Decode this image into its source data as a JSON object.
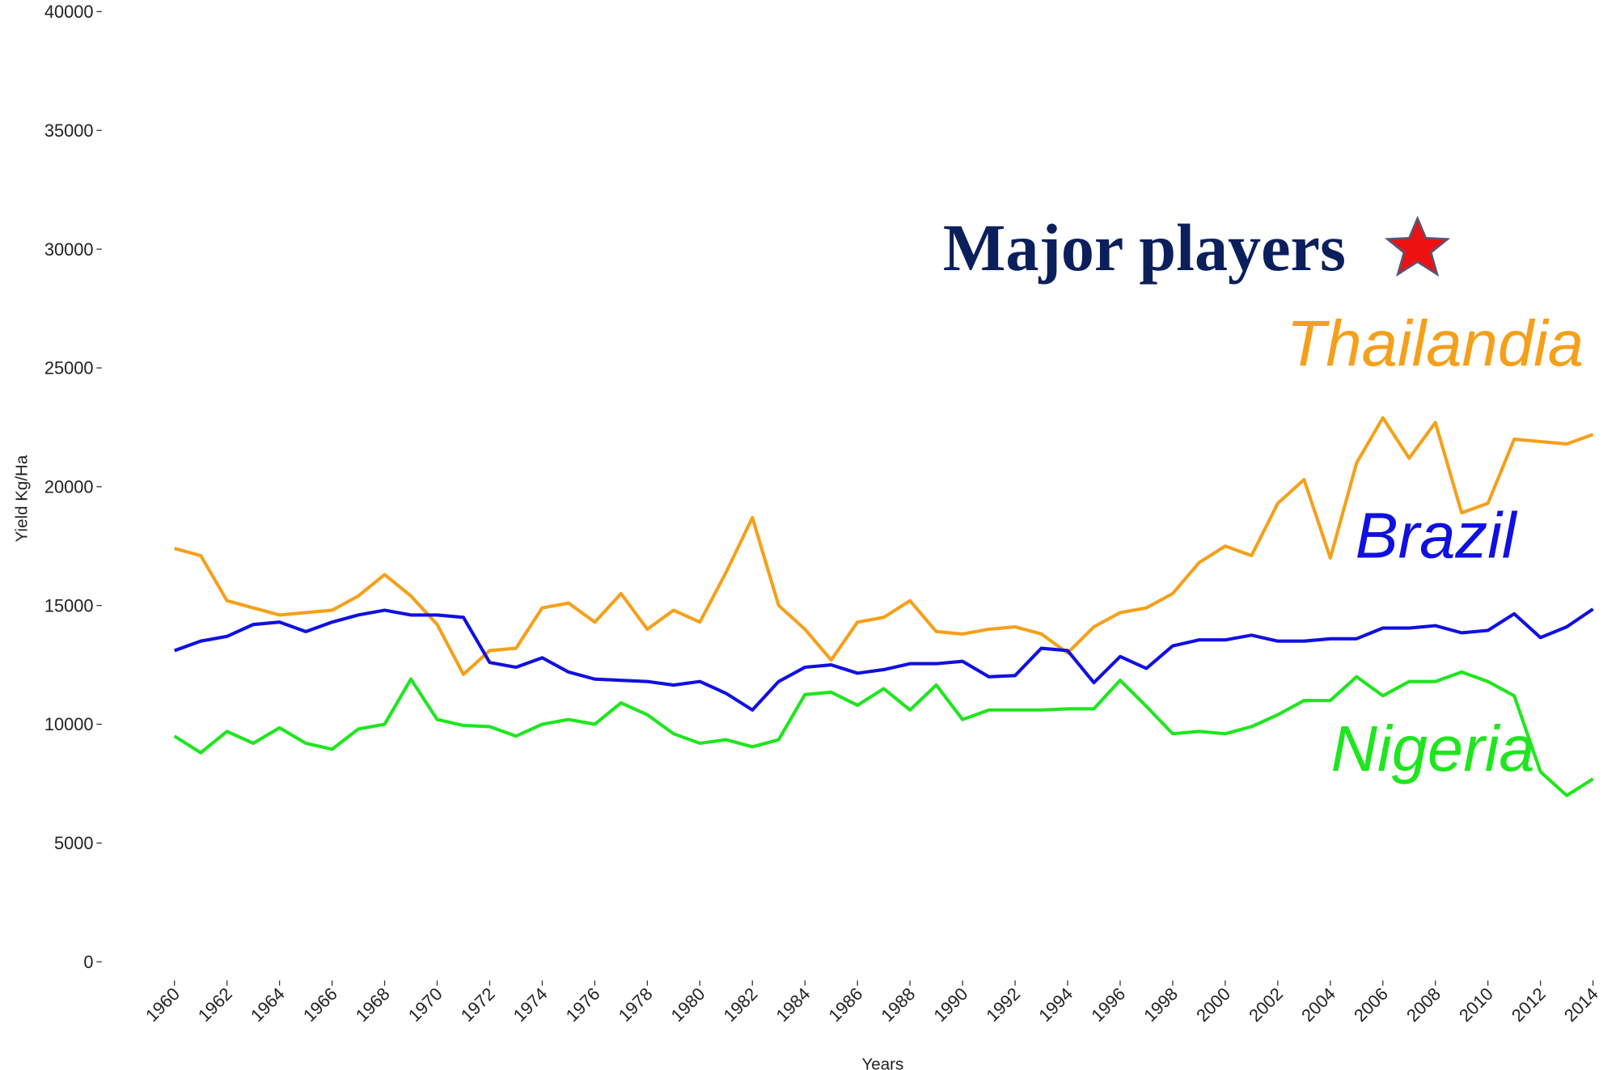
{
  "chart_data": {
    "type": "line",
    "annotation": "Major players",
    "xlabel": "Years",
    "ylabel": "Yield Kg/Ha",
    "x": [
      1960,
      1961,
      1962,
      1963,
      1964,
      1965,
      1966,
      1967,
      1968,
      1969,
      1970,
      1971,
      1972,
      1973,
      1974,
      1975,
      1976,
      1977,
      1978,
      1979,
      1980,
      1981,
      1982,
      1983,
      1984,
      1985,
      1986,
      1987,
      1988,
      1989,
      1990,
      1991,
      1992,
      1993,
      1994,
      1995,
      1996,
      1997,
      1998,
      1999,
      2000,
      2001,
      2002,
      2003,
      2004,
      2005,
      2006,
      2007,
      2008,
      2009,
      2010,
      2011,
      2012,
      2013,
      2014
    ],
    "xlim": [
      1960,
      2014
    ],
    "xticks": [
      1960,
      1962,
      1964,
      1966,
      1968,
      1970,
      1972,
      1974,
      1976,
      1978,
      1980,
      1982,
      1984,
      1986,
      1988,
      1990,
      1992,
      1994,
      1996,
      1998,
      2000,
      2002,
      2004,
      2006,
      2008,
      2010,
      2012,
      2014
    ],
    "ylim": [
      0,
      40000
    ],
    "yticks": [
      0,
      5000,
      10000,
      15000,
      20000,
      25000,
      30000,
      35000,
      40000
    ],
    "series": [
      {
        "name": "Thailandia",
        "color": "#f5a01a",
        "values": [
          17400,
          17100,
          15200,
          14900,
          14600,
          14700,
          14800,
          15400,
          16300,
          15400,
          14200,
          12100,
          13100,
          13200,
          14900,
          15100,
          14300,
          15500,
          14000,
          14800,
          14300,
          16400,
          18700,
          15000,
          14000,
          12700,
          14300,
          14500,
          15200,
          13900,
          13800,
          14000,
          14100,
          13800,
          13000,
          14100,
          14700,
          14900,
          15500,
          16800,
          17500,
          17100,
          19300,
          20300,
          17000,
          21000,
          22900,
          21200,
          22700,
          18900,
          19300,
          22000,
          21900,
          21800,
          22200
        ]
      },
      {
        "name": "Brazil",
        "color": "#1010e0",
        "values": [
          13100,
          13500,
          13700,
          14200,
          14300,
          13900,
          14300,
          14600,
          14800,
          14600,
          14600,
          14500,
          12600,
          12400,
          12800,
          12200,
          11900,
          11850,
          11800,
          11650,
          11800,
          11300,
          10600,
          11800,
          12400,
          12500,
          12150,
          12300,
          12550,
          12550,
          12650,
          12000,
          12050,
          13200,
          13100,
          11750,
          12850,
          12350,
          13300,
          13550,
          13550,
          13750,
          13500,
          13500,
          13600,
          13600,
          14050,
          14050,
          14150,
          13850,
          13950,
          14650,
          13650,
          14100,
          14850
        ]
      },
      {
        "name": "Nigeria",
        "color": "#1ee61e",
        "values": [
          9500,
          8800,
          9700,
          9200,
          9850,
          9200,
          8950,
          9800,
          10000,
          11900,
          10200,
          9950,
          9900,
          9500,
          10000,
          10200,
          10000,
          10900,
          10400,
          9600,
          9200,
          9350,
          9050,
          9350,
          11250,
          11350,
          10800,
          11500,
          10600,
          11650,
          10200,
          10600,
          10600,
          10600,
          10650,
          10650,
          11850,
          10750,
          9600,
          9700,
          9600,
          9900,
          10400,
          11000,
          11000,
          12000,
          11200,
          11800,
          11800,
          12200,
          11800,
          11200,
          8000,
          7000,
          7700
        ]
      }
    ]
  }
}
